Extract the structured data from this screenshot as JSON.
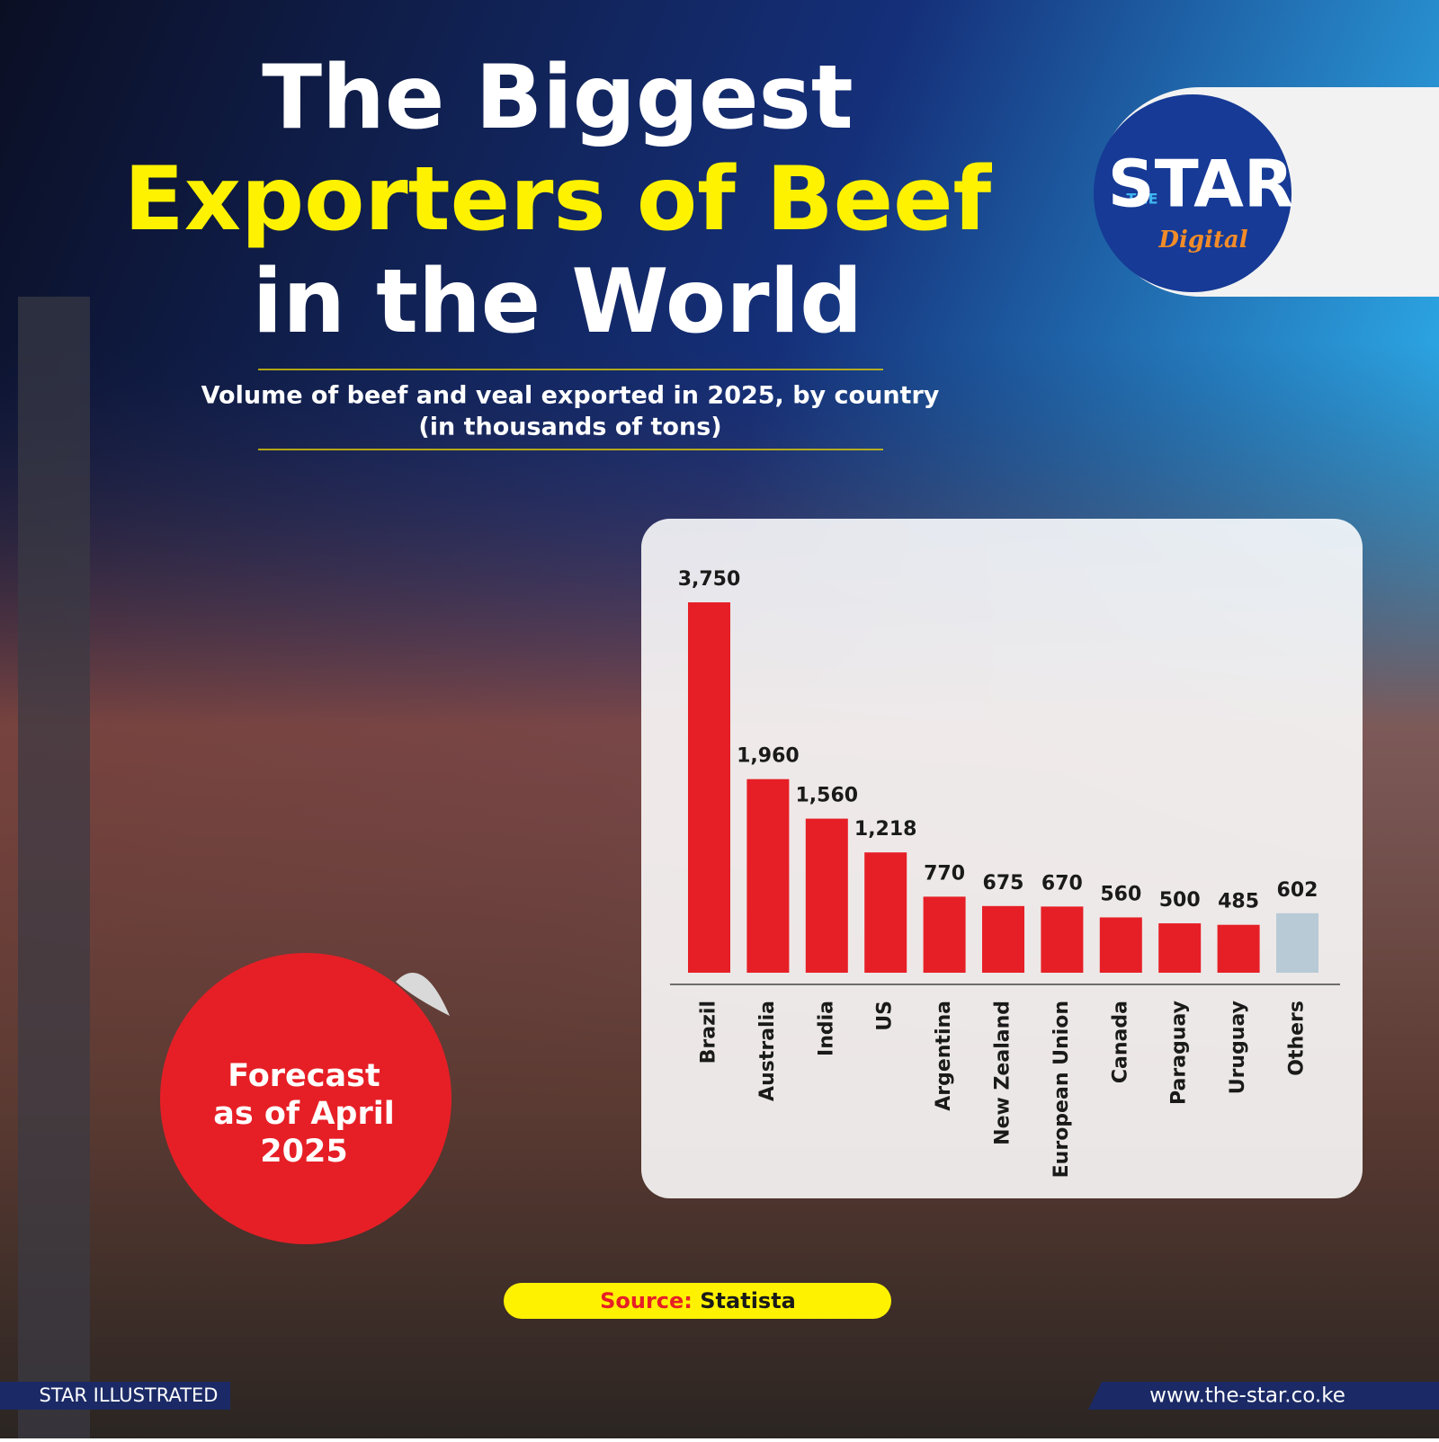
{
  "chart_data": {
    "type": "bar",
    "title": [
      "The Biggest",
      "Exporters of Beef",
      "in the World"
    ],
    "subtitle": [
      "Volume of beef and veal exported in 2025, by country",
      "(in thousands of tons)"
    ],
    "categories": [
      "Brazil",
      "Australia",
      "India",
      "US",
      "Argentina",
      "New Zealand",
      "European Union",
      "Canada",
      "Paraguay",
      "Uruguay",
      "Others"
    ],
    "values": [
      3750,
      1960,
      1560,
      1218,
      770,
      675,
      670,
      560,
      500,
      485,
      602
    ],
    "value_labels": [
      "3,750",
      "1,960",
      "1,560",
      "1,218",
      "770",
      "675",
      "670",
      "560",
      "500",
      "485",
      "602"
    ],
    "colors": [
      "#e61f26",
      "#e61f26",
      "#e61f26",
      "#e61f26",
      "#e61f26",
      "#e61f26",
      "#e61f26",
      "#e61f26",
      "#e61f26",
      "#e61f26",
      "#b7cad6"
    ]
  },
  "badge": [
    "Forecast",
    "as of April",
    "2025"
  ],
  "source": {
    "label": "Source:",
    "value": "Statista"
  },
  "logo": {
    "the": "THE",
    "star": "STAR",
    "digital": "Digital"
  },
  "footer": {
    "left": "STAR ILLUSTRATED",
    "right": "www.the-star.co.ke"
  }
}
